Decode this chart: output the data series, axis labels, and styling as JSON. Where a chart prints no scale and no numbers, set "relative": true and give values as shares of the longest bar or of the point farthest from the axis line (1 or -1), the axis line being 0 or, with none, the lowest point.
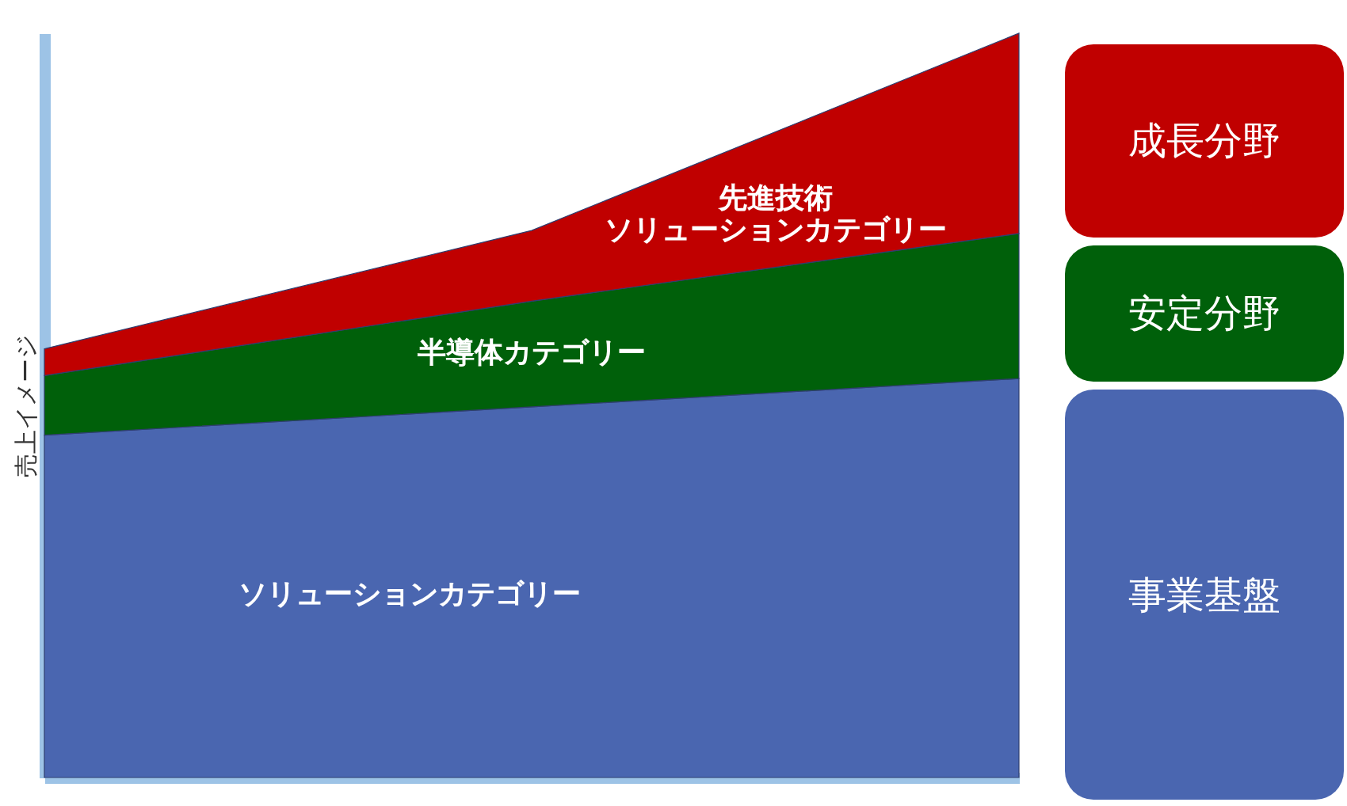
{
  "chart_data": {
    "type": "area",
    "stacked": true,
    "relative": true,
    "ylabel": "売上イメージ",
    "categories": [
      null,
      null,
      null
    ],
    "series": [
      {
        "name": "ソリューションカテゴリー",
        "color": "#4a66b0",
        "values": [
          0.46,
          0.498,
          0.536
        ]
      },
      {
        "name": "半導体カテゴリー",
        "color": "#00600a",
        "values": [
          0.08,
          0.142,
          0.195
        ]
      },
      {
        "name": "先進技術ソリューションカテゴリー",
        "color": "#c00000",
        "values": [
          0.036,
          0.095,
          0.269
        ]
      }
    ],
    "annotations": [
      "成長分野",
      "安定分野",
      "事業基盤"
    ],
    "legend": false
  }
}
